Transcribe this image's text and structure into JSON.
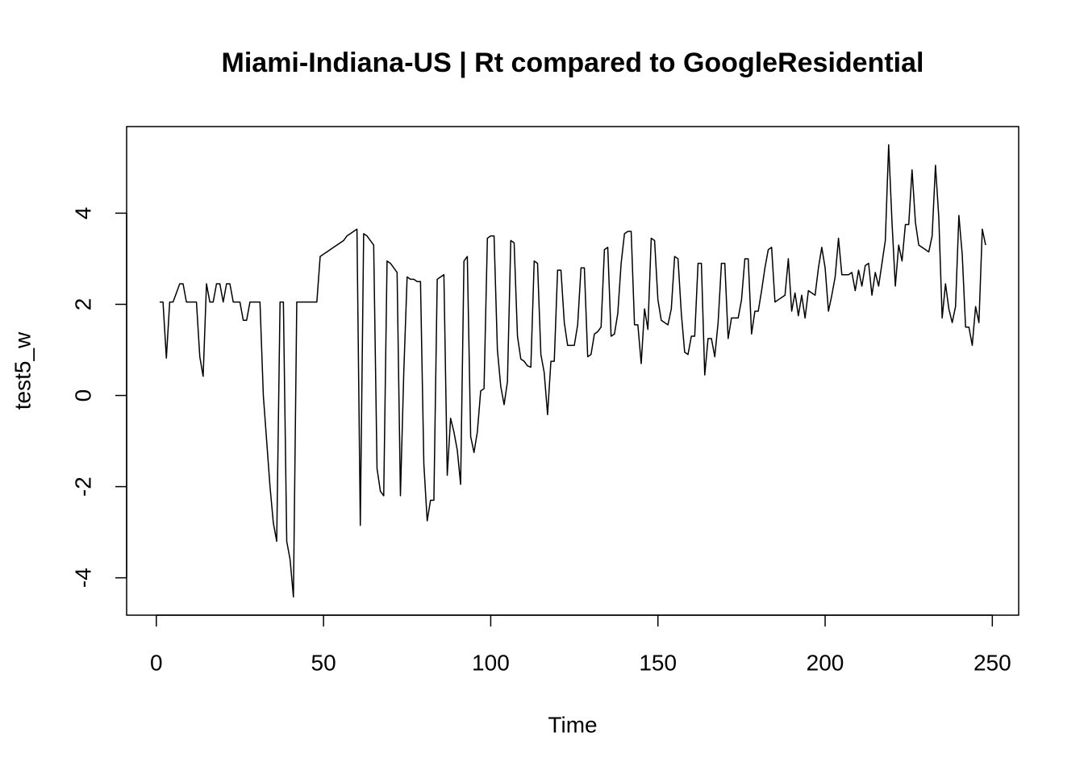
{
  "chart_data": {
    "type": "line",
    "title": "Miami-Indiana-US | Rt compared to GoogleResidential",
    "x_label": "Time",
    "y_label": "test5_w",
    "color": "#000000",
    "xlim": [
      -8.88,
      257.88
    ],
    "ylim": [
      -4.82,
      5.9
    ],
    "xticks": [
      0,
      50,
      100,
      150,
      200,
      250
    ],
    "yticks": [
      -4,
      -2,
      0,
      2,
      4
    ],
    "x": [
      1,
      2,
      3,
      4,
      5,
      6,
      7,
      8,
      9,
      10,
      11,
      12,
      13,
      14,
      15,
      16,
      17,
      18,
      19,
      20,
      21,
      22,
      23,
      24,
      25,
      26,
      27,
      28,
      29,
      30,
      31,
      32,
      33,
      34,
      35,
      36,
      37,
      38,
      39,
      40,
      41,
      42,
      43,
      44,
      45,
      46,
      47,
      48,
      49,
      50,
      51,
      52,
      53,
      54,
      55,
      56,
      57,
      58,
      59,
      60,
      61,
      62,
      63,
      64,
      65,
      66,
      67,
      68,
      69,
      70,
      71,
      72,
      73,
      74,
      75,
      76,
      77,
      78,
      79,
      80,
      81,
      82,
      83,
      84,
      85,
      86,
      87,
      88,
      89,
      90,
      91,
      92,
      93,
      94,
      95,
      96,
      97,
      98,
      99,
      100,
      101,
      102,
      103,
      104,
      105,
      106,
      107,
      108,
      109,
      110,
      111,
      112,
      113,
      114,
      115,
      116,
      117,
      118,
      119,
      120,
      121,
      122,
      123,
      124,
      125,
      126,
      127,
      128,
      129,
      130,
      131,
      132,
      133,
      134,
      135,
      136,
      137,
      138,
      139,
      140,
      141,
      142,
      143,
      144,
      145,
      146,
      147,
      148,
      149,
      150,
      151,
      152,
      153,
      154,
      155,
      156,
      157,
      158,
      159,
      160,
      161,
      162,
      163,
      164,
      165,
      166,
      167,
      168,
      169,
      170,
      171,
      172,
      173,
      174,
      175,
      176,
      177,
      178,
      179,
      180,
      181,
      182,
      183,
      184,
      185,
      186,
      187,
      188,
      189,
      190,
      191,
      192,
      193,
      194,
      195,
      196,
      197,
      198,
      199,
      200,
      201,
      202,
      203,
      204,
      205,
      206,
      207,
      208,
      209,
      210,
      211,
      212,
      213,
      214,
      215,
      216,
      217,
      218,
      219,
      220,
      221,
      222,
      223,
      224,
      225,
      226,
      227,
      228,
      229,
      230,
      231,
      232,
      233,
      234,
      235,
      236,
      237,
      238,
      239,
      240,
      241,
      242,
      243,
      244,
      245,
      246,
      247,
      248
    ],
    "values": [
      2.05,
      2.05,
      0.82,
      2.05,
      2.05,
      2.25,
      2.45,
      2.45,
      2.05,
      2.05,
      2.05,
      2.05,
      0.85,
      0.42,
      2.45,
      2.05,
      2.05,
      2.45,
      2.45,
      2.05,
      2.45,
      2.45,
      2.05,
      2.05,
      2.05,
      1.65,
      1.65,
      2.05,
      2.05,
      2.05,
      2.05,
      0.0,
      -1.0,
      -2.0,
      -2.8,
      -3.2,
      2.05,
      2.05,
      -3.2,
      -3.6,
      -4.42,
      2.05,
      2.05,
      2.05,
      2.05,
      2.05,
      2.05,
      2.05,
      3.05,
      3.1,
      3.15,
      3.2,
      3.25,
      3.3,
      3.35,
      3.4,
      3.5,
      3.55,
      3.6,
      3.65,
      -2.85,
      3.55,
      3.5,
      3.4,
      3.3,
      -1.6,
      -2.1,
      -2.2,
      2.95,
      2.9,
      2.8,
      2.7,
      -2.2,
      0.5,
      2.6,
      2.55,
      2.55,
      2.5,
      2.5,
      -1.5,
      -2.75,
      -2.3,
      -2.3,
      2.55,
      2.6,
      2.65,
      -1.75,
      -0.5,
      -0.8,
      -1.2,
      -1.95,
      2.95,
      3.05,
      -0.9,
      -1.25,
      -0.8,
      0.1,
      0.15,
      3.45,
      3.5,
      3.5,
      1.0,
      0.2,
      -0.2,
      0.3,
      3.4,
      3.35,
      1.3,
      0.8,
      0.75,
      0.65,
      0.62,
      2.95,
      2.9,
      0.9,
      0.5,
      -0.42,
      0.75,
      0.75,
      2.75,
      2.75,
      1.6,
      1.1,
      1.1,
      1.1,
      1.55,
      2.8,
      2.8,
      0.85,
      0.9,
      1.35,
      1.4,
      1.5,
      3.2,
      3.25,
      1.3,
      1.35,
      1.8,
      2.9,
      3.55,
      3.6,
      3.6,
      1.55,
      1.55,
      0.7,
      1.9,
      1.45,
      3.45,
      3.4,
      2.1,
      1.65,
      1.6,
      1.55,
      1.9,
      3.05,
      3.0,
      1.8,
      0.95,
      0.9,
      1.3,
      1.3,
      2.9,
      2.9,
      0.45,
      1.25,
      1.25,
      0.85,
      1.6,
      2.9,
      2.9,
      1.25,
      1.7,
      1.7,
      1.7,
      2.1,
      3.0,
      3.0,
      1.35,
      1.85,
      1.85,
      2.3,
      2.8,
      3.2,
      3.25,
      2.05,
      2.1,
      2.15,
      2.2,
      3.0,
      1.85,
      2.25,
      1.75,
      2.2,
      1.7,
      2.3,
      2.25,
      2.2,
      2.8,
      3.25,
      2.8,
      1.85,
      2.2,
      2.6,
      3.45,
      2.65,
      2.65,
      2.65,
      2.7,
      2.3,
      2.75,
      2.4,
      2.85,
      2.9,
      2.2,
      2.7,
      2.4,
      2.9,
      3.4,
      5.5,
      3.8,
      2.4,
      3.3,
      2.95,
      3.75,
      3.75,
      4.95,
      3.8,
      3.3,
      3.25,
      3.2,
      3.15,
      3.5,
      5.05,
      3.9,
      1.7,
      2.45,
      1.9,
      1.6,
      1.95,
      3.95,
      3.1,
      1.5,
      1.5,
      1.1,
      1.95,
      1.6,
      3.65,
      3.3
    ]
  }
}
